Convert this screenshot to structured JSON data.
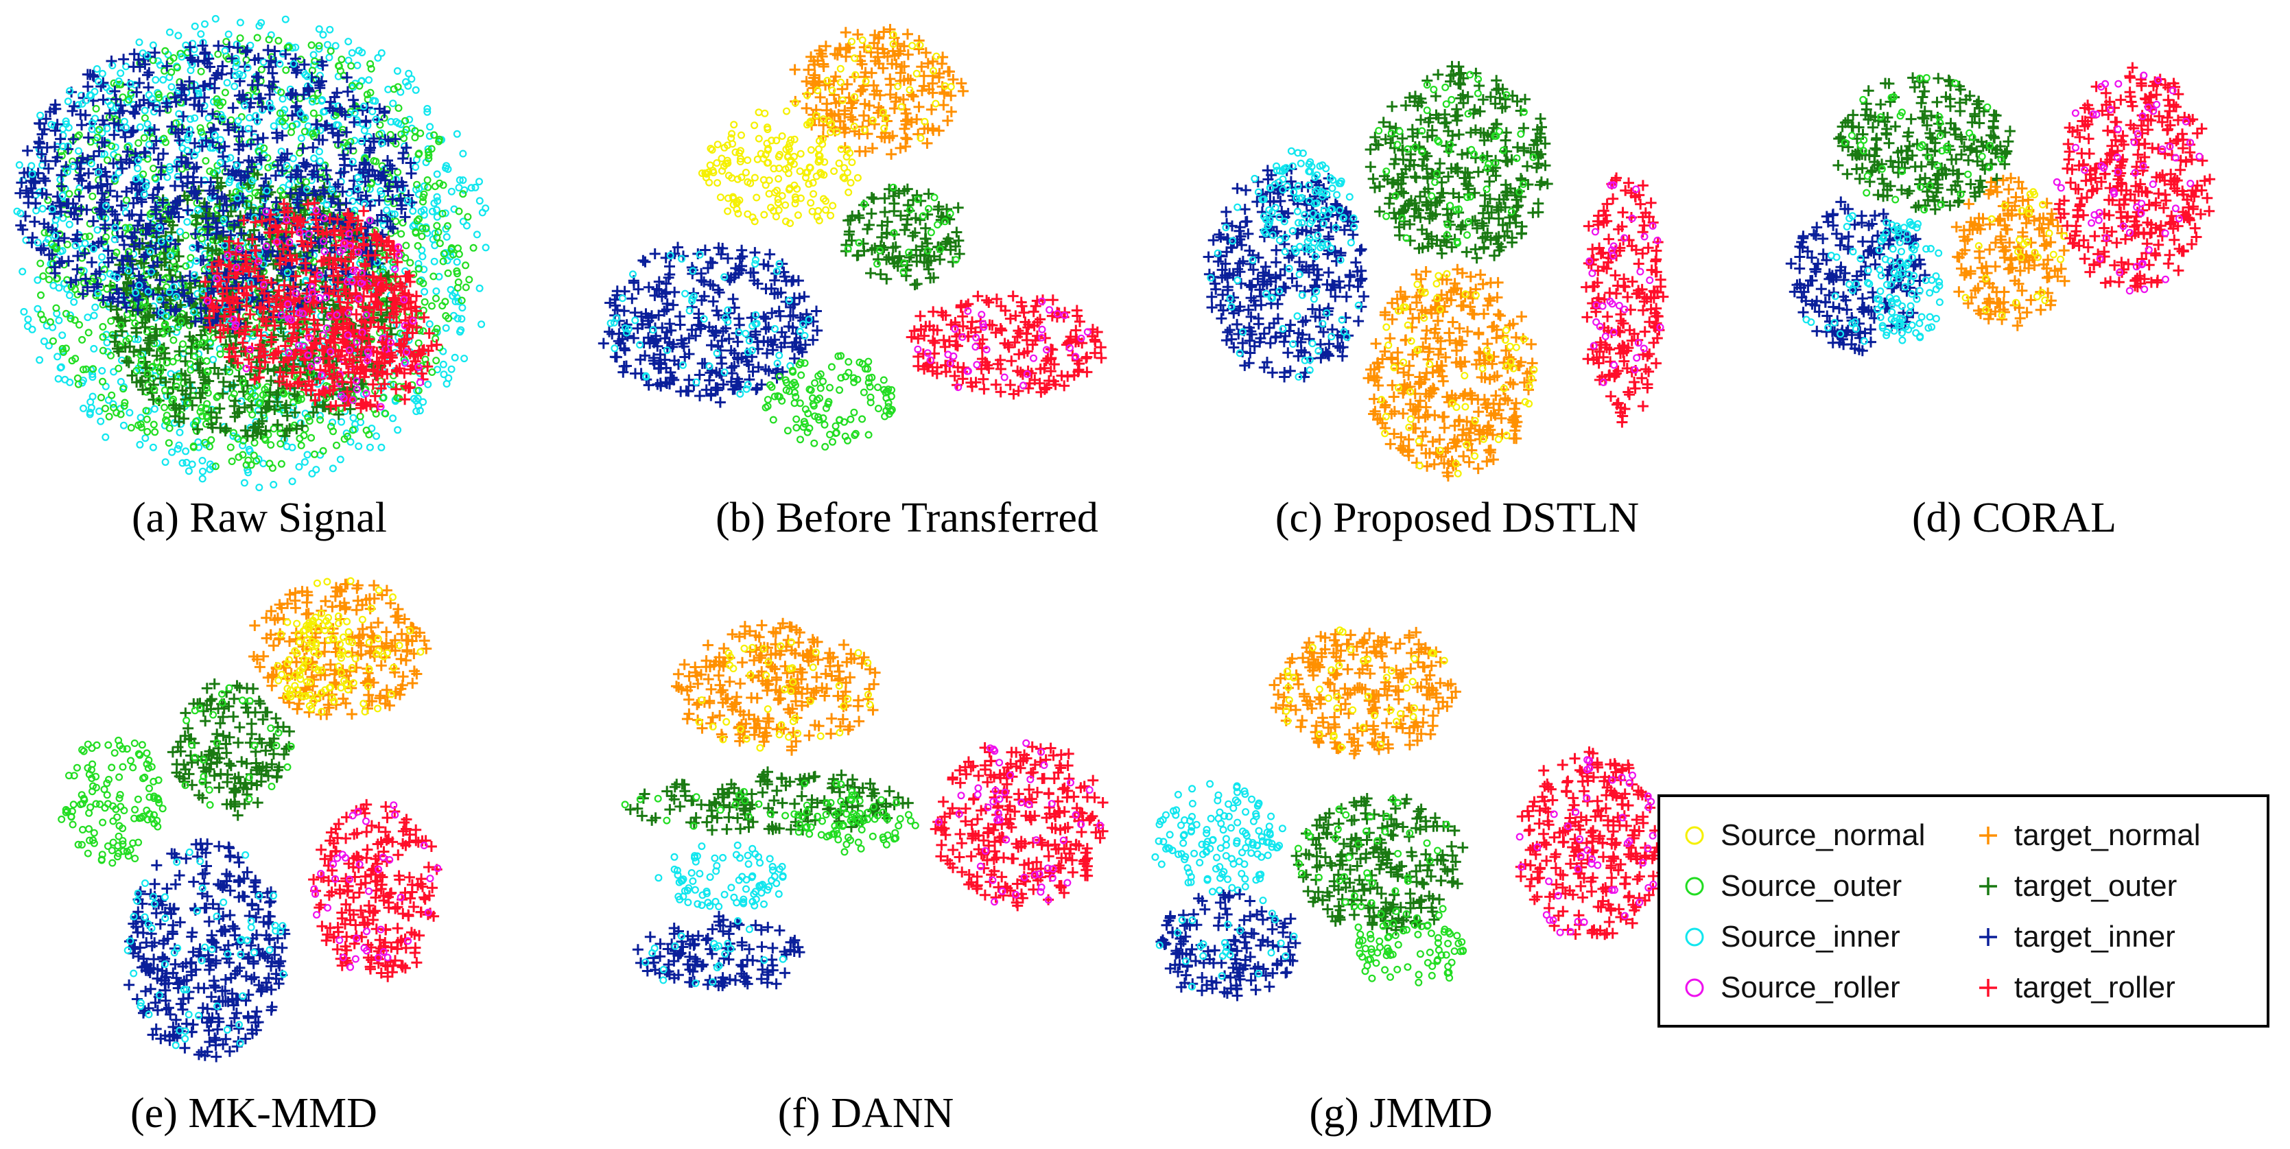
{
  "colors": {
    "Source_normal": "#f5f000",
    "Source_outer": "#22dd22",
    "Source_inner": "#11e6ee",
    "Source_roller": "#ee10ee",
    "target_normal": "#ff9000",
    "target_outer": "#1a7a12",
    "target_inner": "#0a1f9a",
    "target_roller": "#ff0f2a"
  },
  "legend": {
    "entries": [
      {
        "key": "Source_normal",
        "label": "Source_normal",
        "marker": "circle"
      },
      {
        "key": "target_normal",
        "label": "target_normal",
        "marker": "plus"
      },
      {
        "key": "Source_outer",
        "label": "Source_outer",
        "marker": "circle"
      },
      {
        "key": "target_outer",
        "label": "target_outer",
        "marker": "plus"
      },
      {
        "key": "Source_inner",
        "label": "Source_inner",
        "marker": "circle"
      },
      {
        "key": "target_inner",
        "label": "target_inner",
        "marker": "plus"
      },
      {
        "key": "Source_roller",
        "label": "Source_roller",
        "marker": "circle"
      },
      {
        "key": "target_roller",
        "label": "target_roller",
        "marker": "plus"
      }
    ]
  },
  "chart_data": [
    {
      "type": "scatter",
      "title": "(a) Raw Signal",
      "panel": "a",
      "clusters": [
        {
          "cls": "Source_inner",
          "cx": 0.5,
          "cy": 0.5,
          "rx": 0.5,
          "ry": 0.5
        },
        {
          "cls": "Source_outer",
          "cx": 0.5,
          "cy": 0.5,
          "rx": 0.46,
          "ry": 0.46
        },
        {
          "cls": "target_outer",
          "cx": 0.5,
          "cy": 0.62,
          "rx": 0.3,
          "ry": 0.28
        },
        {
          "cls": "target_inner",
          "cx": 0.42,
          "cy": 0.36,
          "rx": 0.42,
          "ry": 0.3
        },
        {
          "cls": "target_roller",
          "cx": 0.62,
          "cy": 0.6,
          "rx": 0.22,
          "ry": 0.2
        },
        {
          "cls": "target_roller",
          "cx": 0.72,
          "cy": 0.7,
          "rx": 0.16,
          "ry": 0.14
        }
      ]
    },
    {
      "type": "scatter",
      "title": "(b) Before Transferred",
      "panel": "b",
      "clusters": [
        {
          "cls": "target_normal",
          "cx": 0.55,
          "cy": 0.14,
          "rx": 0.16,
          "ry": 0.14
        },
        {
          "cls": "Source_normal",
          "cx": 0.37,
          "cy": 0.31,
          "rx": 0.15,
          "ry": 0.13
        },
        {
          "cls": "target_outer",
          "cx": 0.6,
          "cy": 0.46,
          "rx": 0.12,
          "ry": 0.11
        },
        {
          "cls": "target_inner",
          "cx": 0.23,
          "cy": 0.65,
          "rx": 0.21,
          "ry": 0.17
        },
        {
          "cls": "Source_outer",
          "cx": 0.46,
          "cy": 0.82,
          "rx": 0.13,
          "ry": 0.1
        },
        {
          "cls": "target_roller",
          "cx": 0.8,
          "cy": 0.7,
          "rx": 0.19,
          "ry": 0.11
        }
      ]
    },
    {
      "type": "scatter",
      "title": "(c) Proposed DSTLN",
      "panel": "c",
      "clusters": [
        {
          "cls": "target_inner",
          "cx": 0.19,
          "cy": 0.5,
          "rx": 0.16,
          "ry": 0.24
        },
        {
          "cls": "Source_inner",
          "cx": 0.22,
          "cy": 0.34,
          "rx": 0.09,
          "ry": 0.12
        },
        {
          "cls": "target_outer",
          "cx": 0.54,
          "cy": 0.25,
          "rx": 0.18,
          "ry": 0.22
        },
        {
          "cls": "target_normal",
          "cx": 0.52,
          "cy": 0.72,
          "rx": 0.17,
          "ry": 0.24
        },
        {
          "cls": "target_roller",
          "cx": 0.87,
          "cy": 0.55,
          "rx": 0.08,
          "ry": 0.28
        }
      ]
    },
    {
      "type": "scatter",
      "title": "(d) CORAL",
      "panel": "d",
      "clusters": [
        {
          "cls": "target_outer",
          "cx": 0.34,
          "cy": 0.22,
          "rx": 0.19,
          "ry": 0.18
        },
        {
          "cls": "target_inner",
          "cx": 0.2,
          "cy": 0.58,
          "rx": 0.14,
          "ry": 0.2
        },
        {
          "cls": "Source_inner",
          "cx": 0.3,
          "cy": 0.6,
          "rx": 0.08,
          "ry": 0.17
        },
        {
          "cls": "target_normal",
          "cx": 0.52,
          "cy": 0.52,
          "rx": 0.12,
          "ry": 0.2
        },
        {
          "cls": "target_roller",
          "cx": 0.78,
          "cy": 0.32,
          "rx": 0.16,
          "ry": 0.3
        }
      ]
    },
    {
      "type": "scatter",
      "title": "(e) MK-MMD",
      "panel": "e",
      "clusters": [
        {
          "cls": "target_normal",
          "cx": 0.65,
          "cy": 0.16,
          "rx": 0.2,
          "ry": 0.14
        },
        {
          "cls": "Source_normal",
          "cx": 0.59,
          "cy": 0.18,
          "rx": 0.1,
          "ry": 0.1
        },
        {
          "cls": "target_outer",
          "cx": 0.4,
          "cy": 0.36,
          "rx": 0.14,
          "ry": 0.13
        },
        {
          "cls": "Source_outer",
          "cx": 0.12,
          "cy": 0.47,
          "rx": 0.12,
          "ry": 0.13
        },
        {
          "cls": "target_inner",
          "cx": 0.34,
          "cy": 0.77,
          "rx": 0.19,
          "ry": 0.22
        },
        {
          "cls": "target_roller",
          "cx": 0.74,
          "cy": 0.65,
          "rx": 0.15,
          "ry": 0.18
        }
      ]
    },
    {
      "type": "scatter",
      "title": "(f) DANN",
      "panel": "f",
      "clusters": [
        {
          "cls": "target_normal",
          "cx": 0.34,
          "cy": 0.17,
          "rx": 0.2,
          "ry": 0.15
        },
        {
          "cls": "target_outer",
          "cx": 0.32,
          "cy": 0.45,
          "rx": 0.28,
          "ry": 0.07
        },
        {
          "cls": "Source_outer",
          "cx": 0.5,
          "cy": 0.5,
          "rx": 0.12,
          "ry": 0.07
        },
        {
          "cls": "Source_inner",
          "cx": 0.24,
          "cy": 0.63,
          "rx": 0.13,
          "ry": 0.08
        },
        {
          "cls": "target_inner",
          "cx": 0.23,
          "cy": 0.82,
          "rx": 0.16,
          "ry": 0.09
        },
        {
          "cls": "target_roller",
          "cx": 0.82,
          "cy": 0.5,
          "rx": 0.17,
          "ry": 0.2
        }
      ]
    },
    {
      "type": "scatter",
      "title": "(g) JMMD",
      "panel": "g",
      "clusters": [
        {
          "cls": "target_normal",
          "cx": 0.42,
          "cy": 0.17,
          "rx": 0.18,
          "ry": 0.15
        },
        {
          "cls": "Source_inner",
          "cx": 0.13,
          "cy": 0.52,
          "rx": 0.13,
          "ry": 0.13
        },
        {
          "cls": "target_inner",
          "cx": 0.15,
          "cy": 0.77,
          "rx": 0.14,
          "ry": 0.12
        },
        {
          "cls": "target_outer",
          "cx": 0.45,
          "cy": 0.58,
          "rx": 0.17,
          "ry": 0.16
        },
        {
          "cls": "Source_outer",
          "cx": 0.5,
          "cy": 0.78,
          "rx": 0.12,
          "ry": 0.08
        },
        {
          "cls": "target_roller",
          "cx": 0.86,
          "cy": 0.54,
          "rx": 0.14,
          "ry": 0.22
        }
      ]
    }
  ]
}
